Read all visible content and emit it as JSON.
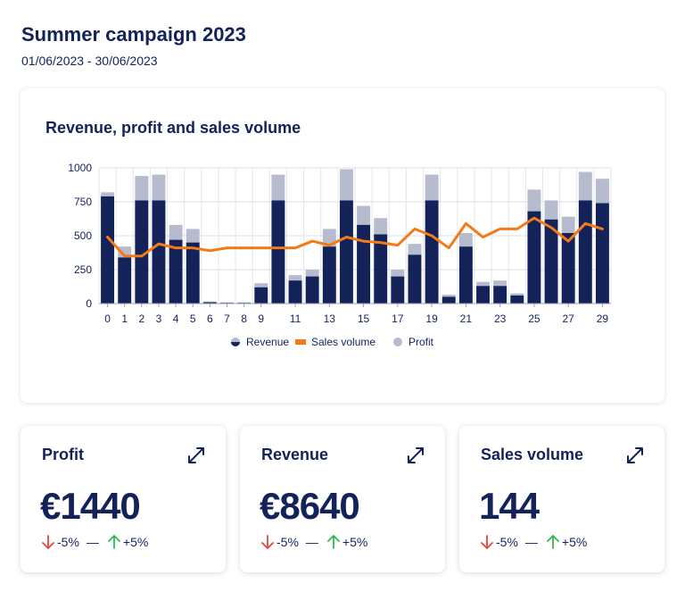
{
  "header": {
    "title": "Summer campaign 2023",
    "date_range": "01/06/2023 - 30/06/2023"
  },
  "chart_card": {
    "title": "Revenue, profit and sales volume"
  },
  "colors": {
    "revenue": "#14225a",
    "profit": "#b6bccd",
    "sales_volume": "#f47a17",
    "trend_down": "#e6453f",
    "trend_up": "#2eb84c"
  },
  "chart_data": {
    "type": "bar",
    "title": "Revenue, profit and sales volume",
    "x": [
      0,
      1,
      2,
      3,
      4,
      5,
      6,
      7,
      8,
      9,
      10,
      11,
      12,
      13,
      14,
      15,
      16,
      17,
      18,
      19,
      20,
      21,
      22,
      23,
      24,
      25,
      26,
      27,
      28,
      29
    ],
    "x_tick_labels": [
      "0",
      "1",
      "2",
      "3",
      "4",
      "5",
      "6",
      "7",
      "8",
      "9",
      "11",
      "13",
      "15",
      "17",
      "19",
      "21",
      "23",
      "25",
      "27",
      "29"
    ],
    "ylim": [
      0,
      1000
    ],
    "yticks": [
      0,
      250,
      500,
      750,
      1000
    ],
    "grid": true,
    "stacked": true,
    "legend_position": "bottom",
    "series": [
      {
        "name": "Revenue",
        "type": "bar",
        "values": [
          790,
          340,
          760,
          760,
          470,
          450,
          10,
          5,
          5,
          120,
          760,
          170,
          200,
          420,
          760,
          580,
          510,
          200,
          360,
          760,
          50,
          420,
          130,
          130,
          60,
          680,
          620,
          520,
          760,
          740
        ]
      },
      {
        "name": "Profit",
        "type": "bar",
        "values": [
          30,
          80,
          180,
          190,
          110,
          100,
          5,
          5,
          5,
          30,
          190,
          40,
          50,
          130,
          230,
          140,
          120,
          50,
          80,
          190,
          15,
          100,
          30,
          40,
          15,
          160,
          140,
          120,
          210,
          180
        ]
      },
      {
        "name": "Sales volume",
        "type": "line",
        "values": [
          490,
          350,
          350,
          440,
          410,
          410,
          390,
          410,
          410,
          410,
          410,
          410,
          460,
          430,
          490,
          460,
          450,
          430,
          550,
          500,
          410,
          590,
          490,
          550,
          550,
          630,
          560,
          460,
          590,
          550
        ]
      }
    ],
    "legend": [
      "Revenue",
      "Sales volume",
      "Profit"
    ]
  },
  "kpis": [
    {
      "title": "Profit",
      "value": "€1440",
      "down": "-5%",
      "sep": "—",
      "up": "+5%"
    },
    {
      "title": "Revenue",
      "value": "€8640",
      "down": "-5%",
      "sep": "—",
      "up": "+5%"
    },
    {
      "title": "Sales volume",
      "value": "144",
      "down": "-5%",
      "sep": "—",
      "up": "+5%"
    }
  ]
}
